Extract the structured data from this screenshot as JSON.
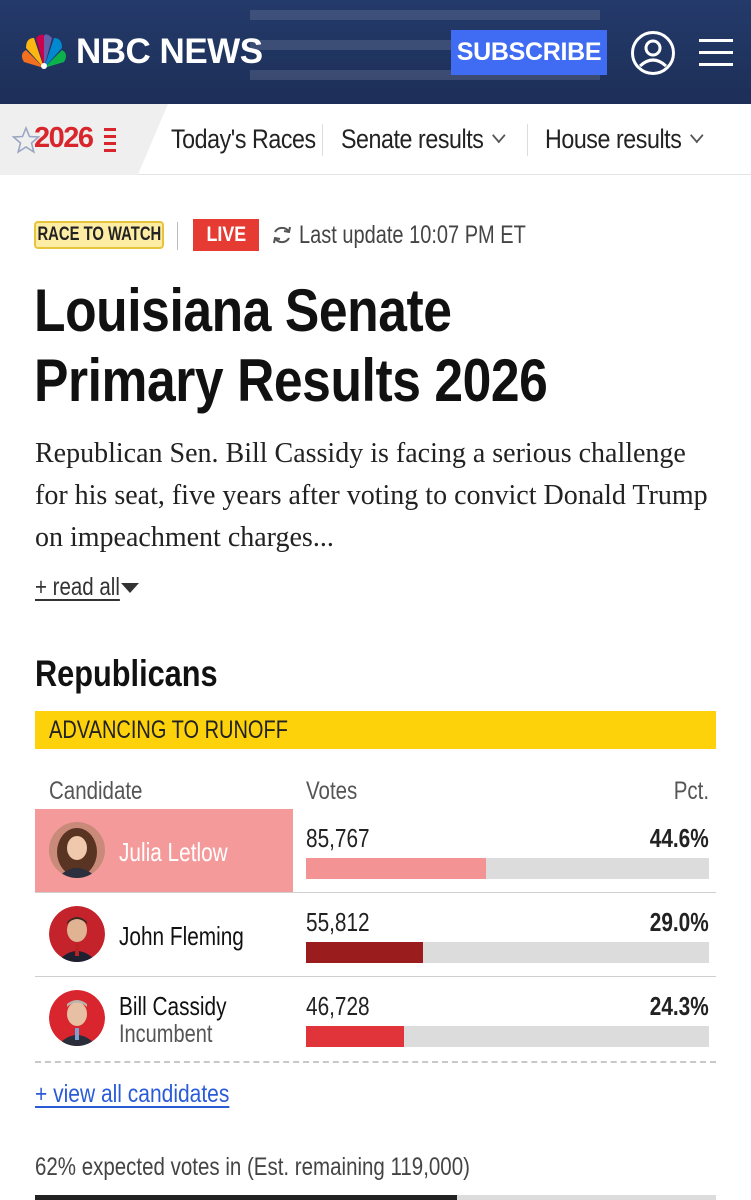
{
  "header": {
    "brand": "NBC NEWS",
    "subscribe_label": "SUBSCRIBE",
    "icons": [
      "nbc-peacock-logo",
      "user-icon",
      "menu-icon"
    ],
    "colors": {
      "background": "#1f325d",
      "subscribe": "#3f6cf2"
    }
  },
  "nav": {
    "badge": "2026",
    "items": [
      {
        "label": "Today's Races",
        "has_dropdown": false
      },
      {
        "label": "Senate results",
        "has_dropdown": true
      },
      {
        "label": "House results",
        "has_dropdown": true
      }
    ]
  },
  "meta": {
    "race_badge": "RACE TO WATCH",
    "live_label": "LIVE",
    "last_update": "Last update 10:07 PM ET"
  },
  "article": {
    "title": "Louisiana Senate Primary Results 2026",
    "description": "Republican Sen. Bill Cassidy is facing a serious challenge for his seat, five years after voting to convict Donald Trump on impeachment charges...",
    "read_all": "+ read all"
  },
  "results": {
    "party": "Republicans",
    "banner": "ADVANCING TO RUNOFF",
    "columns": {
      "candidate": "Candidate",
      "votes": "Votes",
      "pct": "Pct."
    },
    "candidates": [
      {
        "name": "Julia Letlow",
        "subtitle": "",
        "votes": "85,767",
        "pct": "44.6%",
        "share": 44.6,
        "winner": true,
        "bar_color": "#f39393"
      },
      {
        "name": "John Fleming",
        "subtitle": "",
        "votes": "55,812",
        "pct": "29.0%",
        "share": 29.0,
        "winner": false,
        "bar_color": "#9b1c1c"
      },
      {
        "name": "Bill Cassidy",
        "subtitle": "Incumbent",
        "votes": "46,728",
        "pct": "24.3%",
        "share": 24.3,
        "winner": false,
        "bar_color": "#e0333a"
      }
    ],
    "view_all": "+ view all candidates",
    "expected": "62% expected votes in (Est. remaining 119,000)",
    "expected_share": 62
  }
}
